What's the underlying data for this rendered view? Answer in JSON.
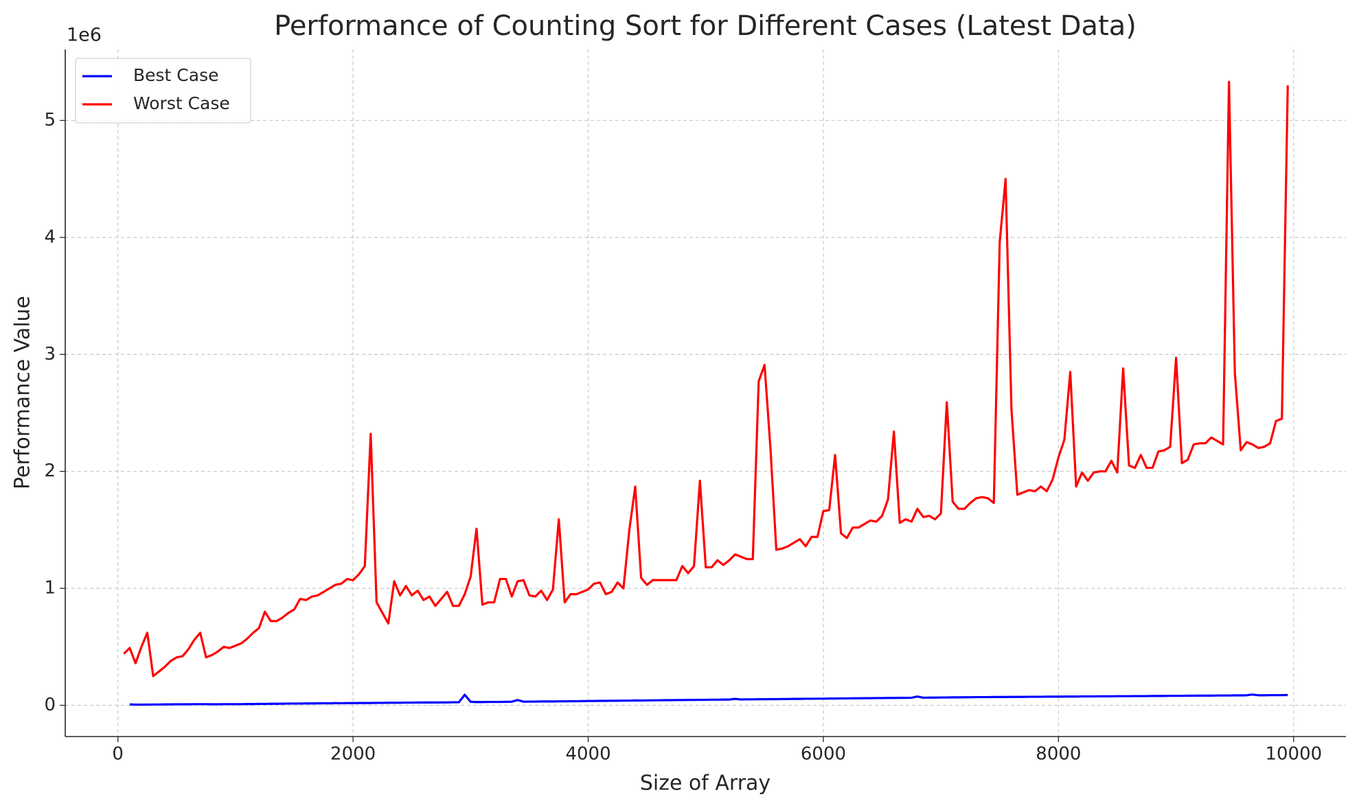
{
  "chart_data": {
    "type": "line",
    "title": "Performance of Counting Sort for Different Cases (Latest Data)",
    "xlabel": "Size of Array",
    "ylabel": "Performance Value",
    "y_offset_label": "1e6",
    "legend_position": "upper left",
    "grid": true,
    "xlim": [
      -448,
      10445
    ],
    "xticks": [
      0,
      2000,
      4000,
      6000,
      8000,
      10000
    ],
    "ylim": [
      -0.267,
      5.607
    ],
    "yticks": [
      0,
      1,
      2,
      3,
      4,
      5
    ],
    "x": [
      50,
      100,
      150,
      200,
      250,
      300,
      350,
      400,
      450,
      500,
      550,
      600,
      650,
      700,
      750,
      800,
      850,
      900,
      950,
      1000,
      1050,
      1100,
      1150,
      1200,
      1250,
      1300,
      1350,
      1400,
      1450,
      1500,
      1550,
      1600,
      1650,
      1700,
      1750,
      1800,
      1850,
      1900,
      1950,
      2000,
      2050,
      2100,
      2150,
      2200,
      2250,
      2300,
      2350,
      2400,
      2450,
      2500,
      2550,
      2600,
      2650,
      2700,
      2750,
      2800,
      2850,
      2900,
      2950,
      3000,
      3050,
      3100,
      3150,
      3200,
      3250,
      3300,
      3350,
      3400,
      3450,
      3500,
      3550,
      3600,
      3650,
      3700,
      3750,
      3800,
      3850,
      3900,
      3950,
      4000,
      4050,
      4100,
      4150,
      4200,
      4250,
      4300,
      4350,
      4400,
      4450,
      4500,
      4550,
      4600,
      4650,
      4700,
      4750,
      4800,
      4850,
      4900,
      4950,
      5000,
      5050,
      5100,
      5150,
      5200,
      5250,
      5300,
      5350,
      5400,
      5450,
      5500,
      5550,
      5600,
      5650,
      5700,
      5750,
      5800,
      5850,
      5900,
      5950,
      6000,
      6050,
      6100,
      6150,
      6200,
      6250,
      6300,
      6350,
      6400,
      6450,
      6500,
      6550,
      6600,
      6650,
      6700,
      6750,
      6800,
      6850,
      6900,
      6950,
      7000,
      7050,
      7100,
      7150,
      7200,
      7250,
      7300,
      7350,
      7400,
      7450,
      7500,
      7550,
      7600,
      7650,
      7700,
      7750,
      7800,
      7850,
      7900,
      7950,
      8000,
      8050,
      8100,
      8150,
      8200,
      8250,
      8300,
      8350,
      8400,
      8450,
      8500,
      8550,
      8600,
      8650,
      8700,
      8750,
      8800,
      8850,
      8900,
      8950,
      9000,
      9050,
      9100,
      9150,
      9200,
      9250,
      9300,
      9350,
      9400,
      9450,
      9500,
      9550,
      9600,
      9650,
      9700,
      9750,
      9800,
      9850,
      9900,
      9950
    ],
    "series": [
      {
        "name": "Best Case",
        "color": "#0000ff",
        "values": [
          null,
          0.008,
          0.006,
          0.006,
          0.006,
          0.007,
          0.007,
          0.008,
          0.008,
          0.009,
          0.009,
          0.009,
          0.01,
          0.01,
          0.01,
          0.009,
          0.009,
          0.01,
          0.01,
          0.01,
          0.01,
          0.011,
          0.011,
          0.012,
          0.012,
          0.013,
          0.013,
          0.014,
          0.015,
          0.015,
          0.015,
          0.016,
          0.016,
          0.017,
          0.018,
          0.017,
          0.019,
          0.018,
          0.019,
          0.019,
          0.02,
          0.02,
          0.02,
          0.021,
          0.021,
          0.022,
          0.022,
          0.022,
          0.023,
          0.023,
          0.024,
          0.024,
          0.025,
          0.024,
          0.025,
          0.025,
          0.026,
          0.026,
          0.09,
          0.03,
          0.028,
          0.028,
          0.029,
          0.029,
          0.029,
          0.03,
          0.031,
          0.045,
          0.031,
          0.032,
          0.032,
          0.033,
          0.033,
          0.033,
          0.034,
          0.034,
          0.035,
          0.035,
          0.036,
          0.037,
          0.037,
          0.038,
          0.038,
          0.039,
          0.039,
          0.04,
          0.04,
          0.042,
          0.041,
          0.042,
          0.043,
          0.043,
          0.044,
          0.044,
          0.045,
          0.045,
          0.046,
          0.046,
          0.047,
          0.047,
          0.048,
          0.048,
          0.049,
          0.049,
          0.055,
          0.05,
          0.051,
          0.051,
          0.052,
          0.052,
          0.053,
          0.053,
          0.054,
          0.054,
          0.055,
          0.055,
          0.056,
          0.056,
          0.057,
          0.057,
          0.058,
          0.058,
          0.059,
          0.059,
          0.06,
          0.06,
          0.061,
          0.061,
          0.062,
          0.062,
          0.063,
          0.063,
          0.064,
          0.064,
          0.065,
          0.075,
          0.065,
          0.066,
          0.066,
          0.067,
          0.067,
          0.068,
          0.068,
          0.069,
          0.069,
          0.07,
          0.07,
          0.07,
          0.071,
          0.071,
          0.071,
          0.072,
          0.072,
          0.072,
          0.073,
          0.073,
          0.073,
          0.074,
          0.074,
          0.074,
          0.075,
          0.075,
          0.075,
          0.076,
          0.076,
          0.076,
          0.077,
          0.077,
          0.077,
          0.078,
          0.078,
          0.078,
          0.079,
          0.079,
          0.079,
          0.08,
          0.08,
          0.08,
          0.081,
          0.081,
          0.081,
          0.082,
          0.082,
          0.083,
          0.083,
          0.083,
          0.084,
          0.084,
          0.084,
          0.085,
          0.085,
          0.086,
          0.092,
          0.086,
          0.086,
          0.087,
          0.087,
          0.087,
          0.088
        ]
      },
      {
        "name": "Worst Case",
        "color": "#ff0000",
        "values": [
          0.44,
          0.49,
          0.36,
          0.5,
          0.62,
          0.25,
          0.29,
          0.33,
          0.38,
          0.41,
          0.42,
          0.48,
          0.56,
          0.62,
          0.41,
          0.43,
          0.46,
          0.5,
          0.49,
          0.51,
          0.53,
          0.57,
          0.62,
          0.66,
          0.8,
          0.72,
          0.72,
          0.75,
          0.79,
          0.82,
          0.91,
          0.9,
          0.93,
          0.94,
          0.97,
          1.0,
          1.03,
          1.04,
          1.08,
          1.07,
          1.12,
          1.19,
          2.32,
          0.88,
          0.79,
          0.7,
          1.06,
          0.94,
          1.02,
          0.94,
          0.98,
          0.9,
          0.93,
          0.85,
          0.91,
          0.97,
          0.85,
          0.85,
          0.95,
          1.1,
          1.51,
          0.86,
          0.88,
          0.88,
          1.08,
          1.08,
          0.93,
          1.06,
          1.07,
          0.94,
          0.93,
          0.98,
          0.9,
          0.99,
          1.59,
          0.88,
          0.95,
          0.95,
          0.97,
          0.99,
          1.04,
          1.05,
          0.95,
          0.97,
          1.05,
          1.0,
          1.5,
          1.87,
          1.09,
          1.03,
          1.07,
          1.07,
          1.07,
          1.07,
          1.07,
          1.19,
          1.13,
          1.19,
          1.92,
          1.18,
          1.18,
          1.24,
          1.2,
          1.24,
          1.29,
          1.27,
          1.25,
          1.25,
          2.77,
          2.91,
          2.2,
          1.33,
          1.34,
          1.36,
          1.39,
          1.42,
          1.36,
          1.44,
          1.44,
          1.66,
          1.67,
          2.14,
          1.47,
          1.43,
          1.52,
          1.52,
          1.55,
          1.58,
          1.57,
          1.62,
          1.76,
          2.34,
          1.56,
          1.59,
          1.57,
          1.68,
          1.61,
          1.62,
          1.59,
          1.64,
          2.59,
          1.74,
          1.68,
          1.68,
          1.73,
          1.77,
          1.78,
          1.77,
          1.73,
          3.96,
          4.5,
          2.53,
          1.8,
          1.82,
          1.84,
          1.83,
          1.87,
          1.83,
          1.93,
          2.12,
          2.27,
          2.85,
          1.87,
          1.99,
          1.92,
          1.99,
          2.0,
          2.0,
          2.09,
          1.99,
          2.88,
          2.05,
          2.03,
          2.14,
          2.03,
          2.03,
          2.17,
          2.18,
          2.21,
          2.97,
          2.07,
          2.1,
          2.23,
          2.24,
          2.24,
          2.29,
          2.26,
          2.23,
          5.33,
          2.84,
          2.18,
          2.25,
          2.23,
          2.2,
          2.21,
          2.24,
          2.43,
          2.45,
          5.3
        ]
      }
    ]
  }
}
